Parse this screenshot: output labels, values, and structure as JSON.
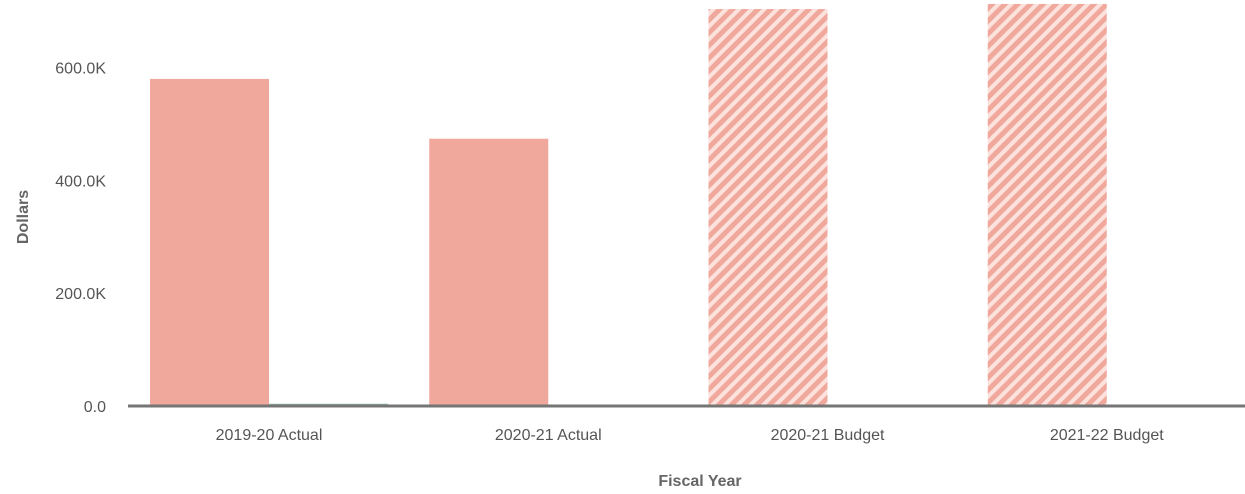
{
  "chart_data": {
    "type": "bar",
    "xlabel": "Fiscal Year",
    "ylabel": "Dollars",
    "categories": [
      "2019-20 Actual",
      "2020-21 Actual",
      "2020-21 Budget",
      "2021-22 Budget"
    ],
    "series": [
      {
        "color": "#f0a89c",
        "hatched": [
          false,
          false,
          true,
          true
        ],
        "values": [
          580000,
          474000,
          704000,
          713000
        ]
      },
      {
        "color": "#8fb8a8",
        "hatched": [
          false,
          false,
          true,
          true
        ],
        "values": [
          4000,
          1000,
          2500,
          1000
        ]
      }
    ],
    "ylim": [
      0,
      720000
    ],
    "yticks": [
      0,
      200000,
      400000,
      600000
    ],
    "ytick_labels": [
      "0.0",
      "200.0K",
      "400.0K",
      "600.0K"
    ],
    "grid": false,
    "legend": "none",
    "baseline_color": "#757575"
  }
}
